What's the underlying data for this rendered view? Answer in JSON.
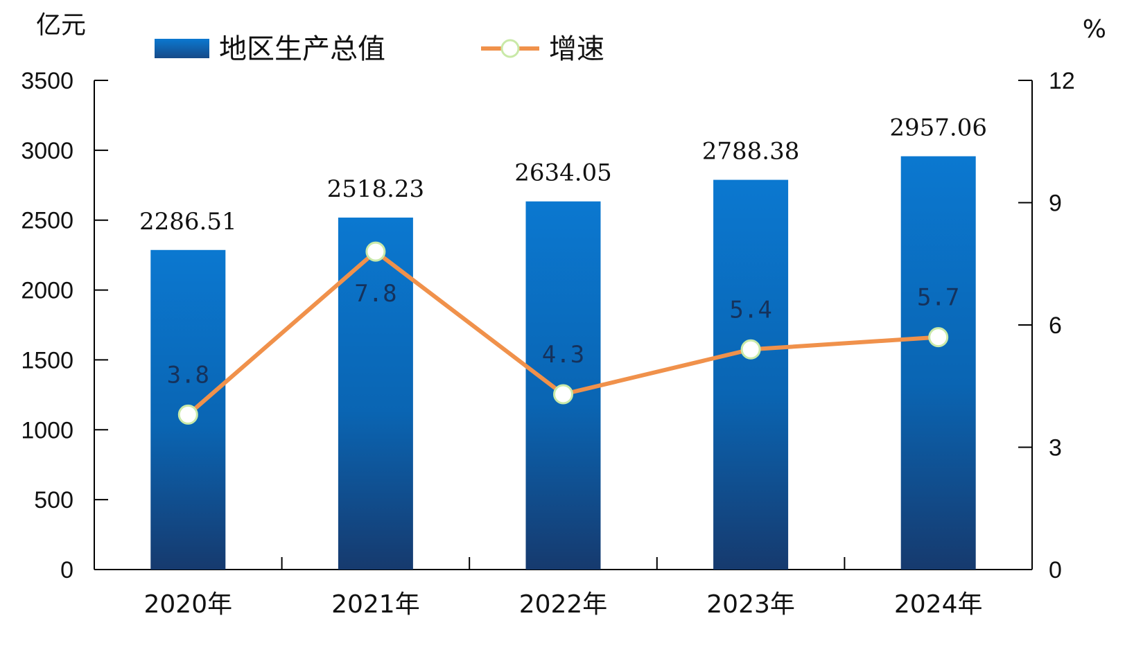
{
  "chart_data": {
    "type": "bar",
    "categories": [
      "2020年",
      "2021年",
      "2022年",
      "2023年",
      "2024年"
    ],
    "series": [
      {
        "name": "地区生产总值",
        "type": "bar",
        "axis": "left",
        "values": [
          2286.51,
          2518.23,
          2634.05,
          2788.38,
          2957.06
        ],
        "labels": [
          "2286.51",
          "2518.23",
          "2634.05",
          "2788.38",
          "2957.06"
        ],
        "color": "#0a6fc2"
      },
      {
        "name": "增速",
        "type": "line",
        "axis": "right",
        "values": [
          3.8,
          7.8,
          4.3,
          5.4,
          5.7
        ],
        "labels": [
          "3.8",
          "7.8",
          "4.3",
          "5.4",
          "5.7"
        ],
        "color": "#f0914b"
      }
    ],
    "left_axis": {
      "unit": "亿元",
      "ylim": [
        0,
        3500
      ],
      "ticks": [
        "0",
        "500",
        "1000",
        "1500",
        "2000",
        "2500",
        "3000",
        "3500"
      ]
    },
    "right_axis": {
      "unit": "%",
      "ylim": [
        0,
        12
      ],
      "ticks": [
        "0",
        "3",
        "6",
        "9",
        "12"
      ]
    },
    "legend": [
      "地区生产总值",
      "增速"
    ],
    "legend_position": "top",
    "grid": false
  }
}
